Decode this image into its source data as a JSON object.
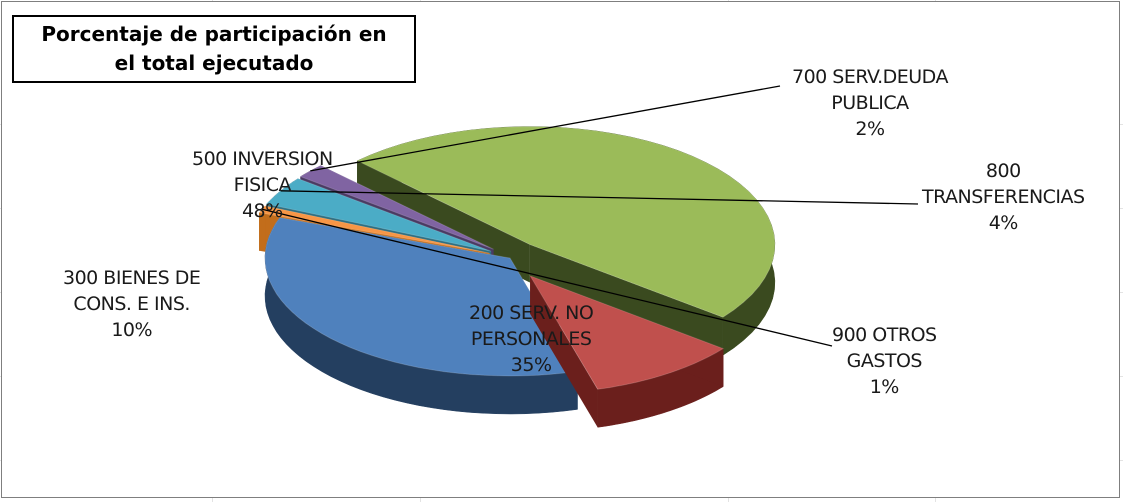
{
  "chart_data": {
    "type": "pie",
    "title_lines": [
      "Porcentaje de participación en",
      "el total ejecutado"
    ],
    "slices": [
      {
        "code": "200",
        "label_lines": [
          "200 SERV. NO",
          "PERSONALES"
        ],
        "value": 35,
        "pct_text": "35%",
        "color": "#4f81bd"
      },
      {
        "code": "300",
        "label_lines": [
          "300 BIENES DE",
          "CONS. E INS."
        ],
        "value": 10,
        "pct_text": "10%",
        "color": "#c0504d"
      },
      {
        "code": "500",
        "label_lines": [
          "500 INVERSION",
          "FISICA"
        ],
        "value": 48,
        "pct_text": "48%",
        "color": "#9bbb59"
      },
      {
        "code": "700",
        "label_lines": [
          "700 SERV.DEUDA",
          "PUBLICA"
        ],
        "value": 2,
        "pct_text": "2%",
        "color": "#8064a2"
      },
      {
        "code": "800",
        "label_lines": [
          "800",
          "TRANSFERENCIAS"
        ],
        "value": 4,
        "pct_text": "4%",
        "color": "#4bacc6"
      },
      {
        "code": "900",
        "label_lines": [
          "900 OTROS",
          "GASTOS"
        ],
        "value": 1,
        "pct_text": "1%",
        "color": "#f79646"
      }
    ],
    "style": "3d-exploded",
    "side_colors": {
      "200": "#243f60",
      "300": "#6b1f1c",
      "500": "#3a4a1f",
      "700": "#4a3a63",
      "800": "#2d6e80",
      "900": "#c26d1b"
    },
    "extra_colors": {
      "brown": "#8a4a1f",
      "brown_side": "#5c2e12"
    },
    "legend": "none"
  }
}
